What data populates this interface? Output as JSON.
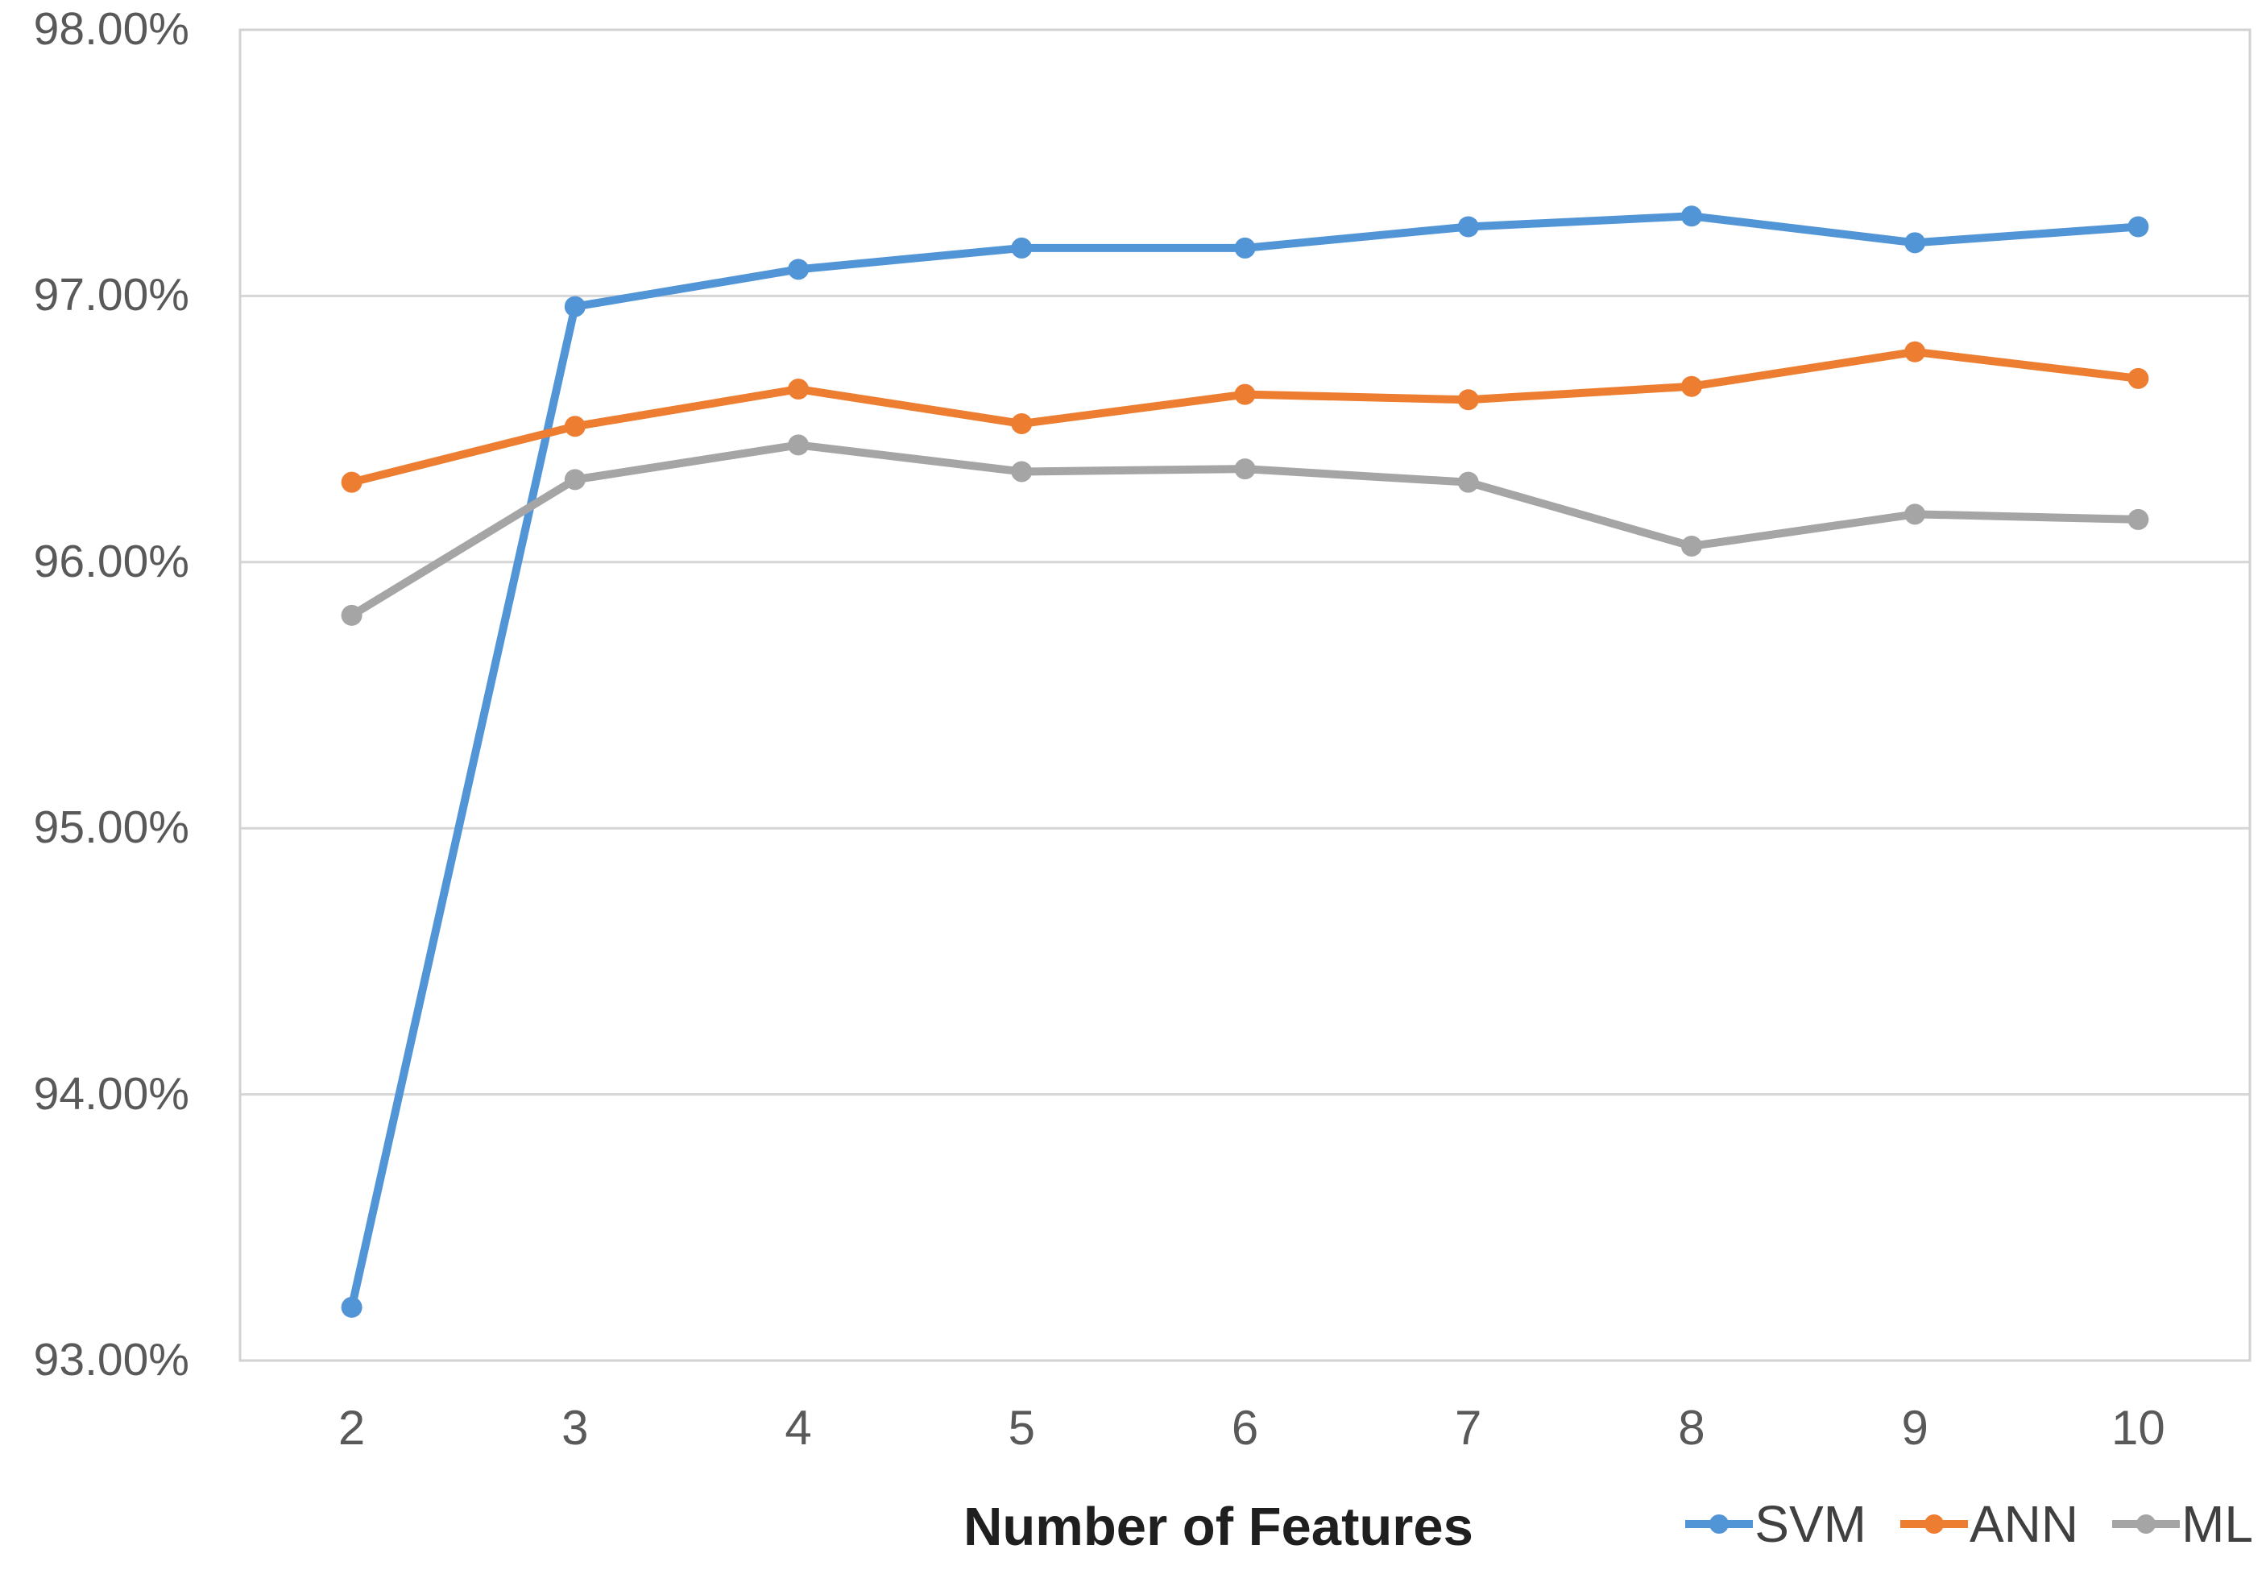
{
  "chart_data": {
    "type": "line",
    "title": "",
    "xlabel": "Number of Features",
    "ylabel": "",
    "categories": [
      "2",
      "3",
      "4",
      "5",
      "6",
      "7",
      "8",
      "9",
      "10"
    ],
    "series": [
      {
        "name": "SVM",
        "color": "#5295d6",
        "values": [
          93.2,
          96.96,
          97.1,
          97.18,
          97.18,
          97.26,
          97.3,
          97.2,
          97.26
        ]
      },
      {
        "name": "ANN",
        "color": "#ed7d31",
        "values": [
          96.3,
          96.51,
          96.65,
          96.52,
          96.63,
          96.61,
          96.66,
          96.79,
          96.69
        ]
      },
      {
        "name": "ML",
        "color": "#a5a5a5",
        "values": [
          95.8,
          96.31,
          96.44,
          96.34,
          96.35,
          96.3,
          96.06,
          96.18,
          96.16
        ]
      }
    ],
    "y_axis": {
      "min": 93,
      "max": 98,
      "step": 1,
      "tick_labels": [
        "93.00%",
        "94.00%",
        "95.00%",
        "96.00%",
        "97.00%",
        "98.00%"
      ]
    },
    "x_axis": {
      "tick_labels": [
        "2",
        "3",
        "4",
        "5",
        "6",
        "7",
        "8",
        "9",
        "10"
      ]
    },
    "legend_position": "bottom-right",
    "grid": "horizontal",
    "marker_shape": "circle"
  },
  "styles": {
    "plot_border_color": "#d2d2d2",
    "gridline_color": "#d6d6d6",
    "axis_line_color": "#c9c9c9",
    "tick_label_color": "#595959",
    "title_color": "#1f1f1f",
    "legend_text_color": "#404040",
    "background_color": "#ffffff"
  }
}
